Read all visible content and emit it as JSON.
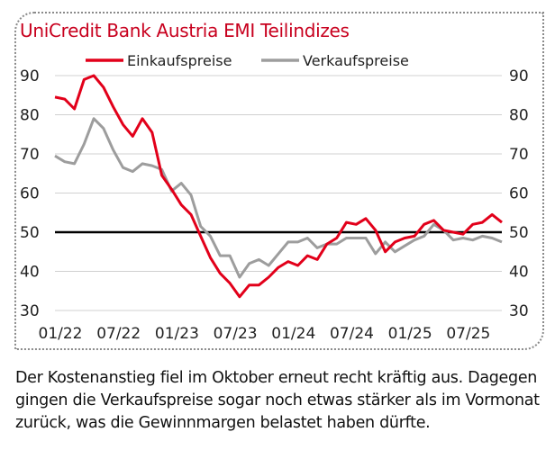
{
  "chart_data": {
    "type": "line",
    "title": "UniCredit Bank Austria EMI Teilindizes",
    "xlabel": "",
    "ylabel": "",
    "ylim": [
      30,
      90
    ],
    "yticks": [
      "30",
      "40",
      "50",
      "60",
      "70",
      "80",
      "90"
    ],
    "x_tick_labels": [
      "01/22",
      "07/22",
      "01/23",
      "07/23",
      "01/24",
      "07/24",
      "01/25",
      "07/25"
    ],
    "x_start": "01/22",
    "x_end": "10/25",
    "reference_line": 50,
    "grid": true,
    "legend_position": "top-center",
    "series": [
      {
        "name": "Einkaufspreise",
        "color": "#e2001a",
        "values": [
          84.5,
          84,
          81.5,
          89,
          90,
          87,
          82,
          77.5,
          74.5,
          79,
          75.5,
          64.5,
          61,
          57,
          54.5,
          49,
          43.5,
          39.5,
          37,
          33.5,
          36.5,
          36.5,
          38.5,
          41,
          42.5,
          41.5,
          44,
          43,
          47,
          48.5,
          52.5,
          52,
          53.5,
          50.5,
          45,
          47.5,
          48.5,
          49,
          52,
          53,
          50.5,
          50,
          49.5,
          52,
          52.5,
          54.5,
          52.5
        ]
      },
      {
        "name": "Verkaufspreise",
        "color": "#9d9d9d",
        "values": [
          69.5,
          68,
          67.5,
          72.5,
          79,
          76.5,
          71,
          66.5,
          65.5,
          67.5,
          67,
          66,
          60.5,
          62.5,
          59.5,
          51.5,
          49,
          44,
          44,
          38.5,
          42,
          43,
          41.5,
          44.5,
          47.5,
          47.5,
          48.5,
          46,
          47,
          47,
          48.5,
          48.5,
          48.5,
          44.5,
          47.5,
          45,
          46.5,
          48,
          49,
          52,
          50.5,
          48,
          48.5,
          48,
          49,
          48.5,
          47.5
        ]
      }
    ]
  },
  "caption": "Der Kostenanstieg fiel im Oktober erneut recht kräftig aus. Dagegen gingen die Verkaufspreise sogar noch etwas stärker als im Vormonat zurück, was die Gewinnmargen belastet haben dürfte."
}
